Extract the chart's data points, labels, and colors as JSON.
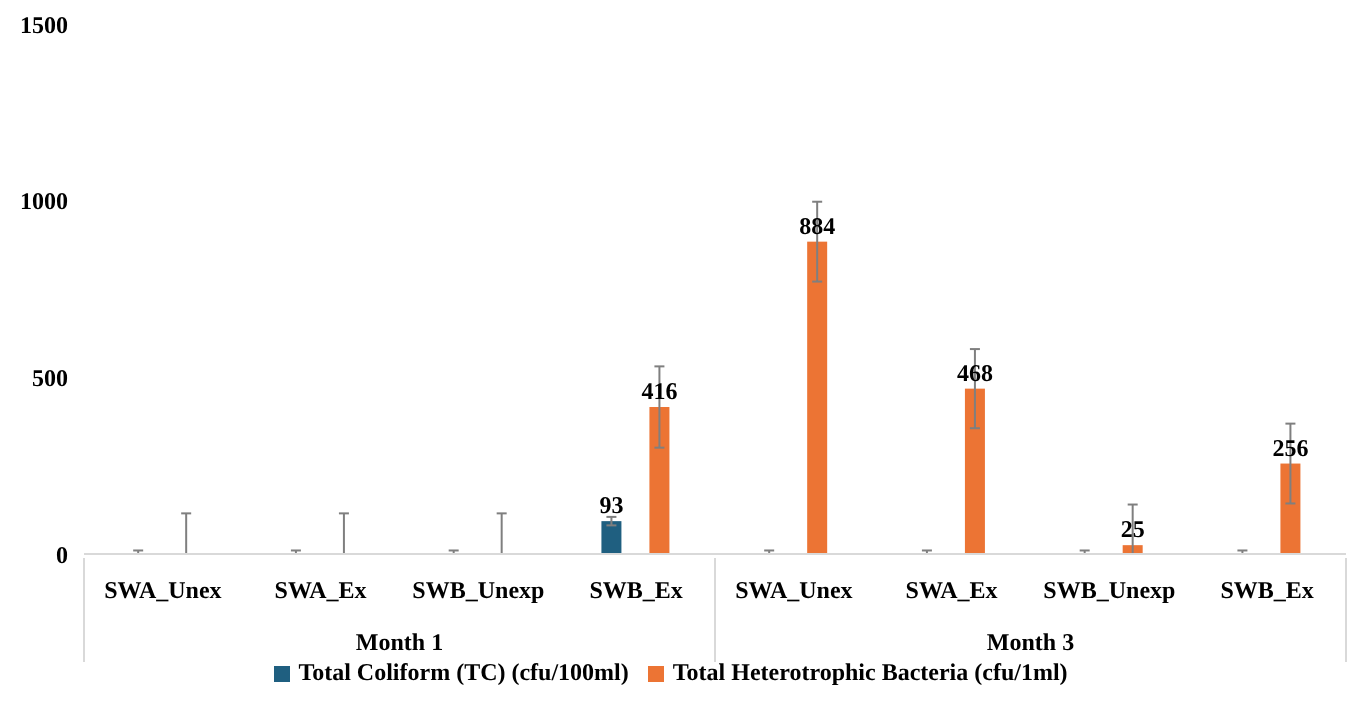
{
  "chart_data": {
    "type": "bar",
    "categories": [
      "SWA_Unex",
      "SWA_Ex",
      "SWB_Unexp",
      "SWB_Ex",
      "SWA_Unex",
      "SWA_Ex",
      "SWB_Unexp",
      "SWB_Ex"
    ],
    "annotations": [
      "Month 1",
      "Month 3"
    ],
    "series": [
      {
        "name": "Total Coliform (TC) (cfu/100ml)",
        "color": "#1f5f80",
        "values": [
          0,
          0,
          0,
          93,
          0,
          0,
          0,
          0
        ],
        "errors": [
          [
            0,
            10
          ],
          [
            0,
            10
          ],
          [
            0,
            10
          ],
          12,
          [
            0,
            10
          ],
          [
            0,
            10
          ],
          [
            0,
            10
          ],
          [
            0,
            10
          ]
        ],
        "value_labels": [
          null,
          null,
          null,
          "93",
          null,
          null,
          null,
          null
        ]
      },
      {
        "name": "Total Heterotrophic Bacteria (cfu/1ml)",
        "color": "#ec7434",
        "values": [
          0,
          0,
          0,
          416,
          884,
          468,
          25,
          256
        ],
        "errors": [
          [
            0,
            115
          ],
          [
            0,
            115
          ],
          [
            0,
            115
          ],
          115,
          113,
          112,
          [
            0,
            140
          ],
          113
        ],
        "value_labels": [
          null,
          null,
          null,
          "416",
          "884",
          "468",
          "25",
          "256"
        ]
      }
    ],
    "ylim": [
      0,
      1500
    ],
    "yticks": [
      0,
      500,
      1000,
      1500
    ],
    "grid": false,
    "legend": "bottom"
  }
}
